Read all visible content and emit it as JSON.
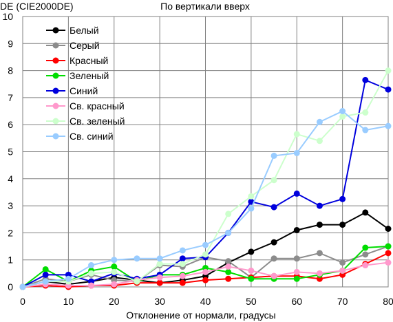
{
  "chart_data": {
    "type": "line",
    "title": "По вертикали вверх",
    "ylabel": "DE (CIE2000DE)",
    "xlabel": "Отклонение от нормали, градусы",
    "xlim": [
      0,
      80
    ],
    "ylim": [
      0,
      10
    ],
    "x_ticks": [
      "0",
      "10",
      "20",
      "30",
      "40",
      "50",
      "60",
      "70",
      "80"
    ],
    "y_ticks": [
      "0",
      "1",
      "2",
      "3",
      "4",
      "5",
      "6",
      "7",
      "8",
      "9",
      "10"
    ],
    "grid": true,
    "legend_position": "top-left",
    "x": [
      0,
      5,
      10,
      15,
      20,
      25,
      30,
      35,
      40,
      45,
      50,
      55,
      60,
      65,
      70,
      75,
      80
    ],
    "series": [
      {
        "name": "Белый",
        "color": "#000000",
        "values": [
          0.0,
          0.2,
          0.1,
          0.2,
          0.35,
          0.25,
          0.15,
          0.25,
          0.4,
          0.9,
          1.3,
          1.65,
          2.1,
          2.3,
          2.3,
          2.75,
          2.15
        ]
      },
      {
        "name": "Серый",
        "color": "#8c8c8c",
        "values": [
          0.0,
          0.3,
          0.2,
          0.45,
          0.25,
          0.2,
          0.8,
          0.75,
          1.1,
          0.95,
          0.35,
          1.05,
          1.05,
          1.25,
          0.9,
          1.2,
          1.5
        ]
      },
      {
        "name": "Красный",
        "color": "#ff0000",
        "values": [
          0.0,
          0.05,
          0.0,
          0.05,
          0.05,
          0.15,
          0.15,
          0.15,
          0.25,
          0.3,
          0.35,
          0.4,
          0.4,
          0.3,
          0.45,
          0.85,
          1.25
        ]
      },
      {
        "name": "Зеленый",
        "color": "#00dd00",
        "values": [
          0.0,
          0.65,
          0.2,
          0.6,
          0.75,
          0.2,
          0.45,
          0.45,
          0.7,
          0.55,
          0.3,
          0.3,
          0.3,
          0.45,
          0.6,
          1.45,
          1.5
        ]
      },
      {
        "name": "Синий",
        "color": "#0000dd",
        "values": [
          0.0,
          0.45,
          0.45,
          0.2,
          0.5,
          0.3,
          0.45,
          1.05,
          1.1,
          2.0,
          3.15,
          2.95,
          3.45,
          3.0,
          3.25,
          7.65,
          7.3
        ]
      },
      {
        "name": "Св. красный",
        "color": "#ff99cc",
        "values": [
          0.0,
          0.1,
          0.05,
          0.05,
          0.1,
          0.25,
          0.35,
          0.4,
          0.55,
          0.75,
          0.6,
          0.4,
          0.55,
          0.5,
          0.6,
          0.8,
          0.9
        ]
      },
      {
        "name": "Св. зеленый",
        "color": "#ccffcc",
        "values": [
          0.0,
          0.2,
          0.2,
          0.5,
          0.55,
          0.2,
          0.85,
          0.85,
          1.2,
          2.7,
          3.35,
          3.95,
          5.65,
          5.4,
          6.3,
          6.45,
          8.0
        ]
      },
      {
        "name": "Св. синий",
        "color": "#99ccff",
        "values": [
          0.0,
          0.2,
          0.3,
          0.8,
          1.0,
          1.05,
          1.05,
          1.35,
          1.55,
          2.0,
          2.9,
          4.85,
          4.95,
          6.1,
          6.5,
          5.8,
          5.95
        ]
      }
    ]
  }
}
